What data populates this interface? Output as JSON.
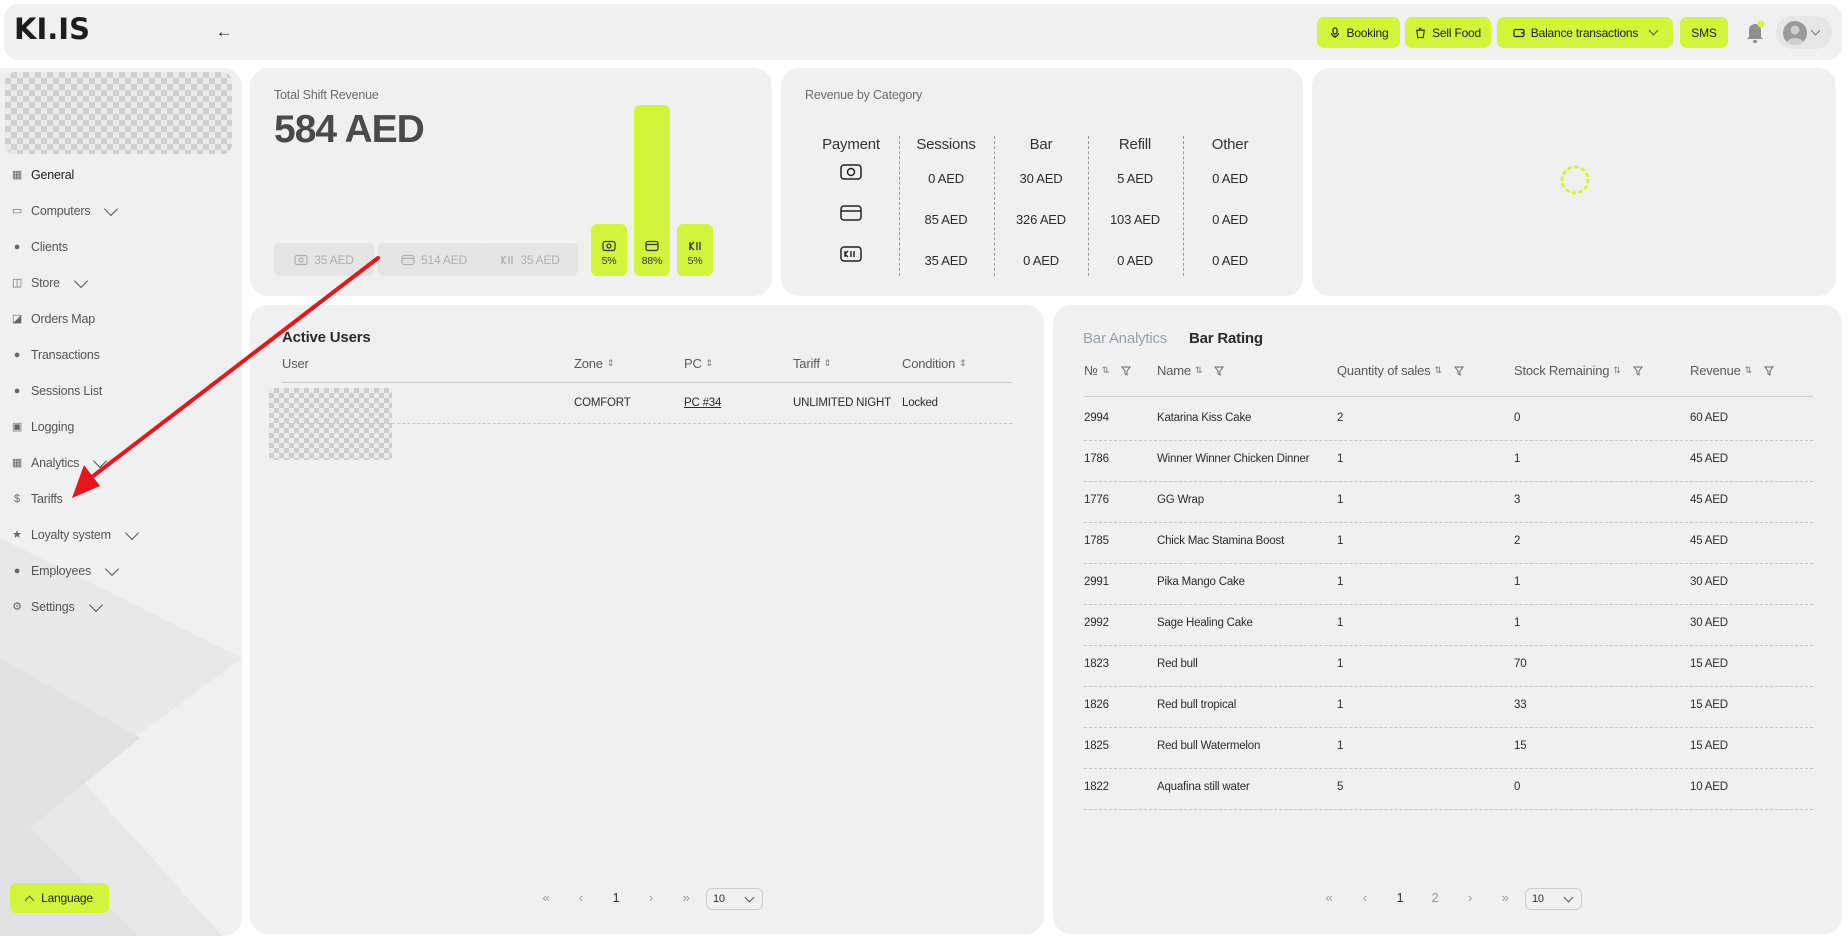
{
  "app": {
    "logo_text": "KI.IS"
  },
  "topbar": {
    "buttons": [
      {
        "label": "Booking",
        "icon": "microphone-icon"
      },
      {
        "label": "Sell Food",
        "icon": "cup-icon"
      },
      {
        "label": "Balance transactions",
        "icon": "wallet-icon"
      },
      {
        "label": "SMS"
      }
    ]
  },
  "sidebar": {
    "items": [
      {
        "label": "General",
        "icon": "grid-icon",
        "active": true
      },
      {
        "label": "Computers",
        "icon": "monitor-icon",
        "expandable": true
      },
      {
        "label": "Clients",
        "icon": "users-icon"
      },
      {
        "label": "Store",
        "icon": "store-icon",
        "expandable": true
      },
      {
        "label": "Orders Map",
        "icon": "map-icon"
      },
      {
        "label": "Transactions",
        "icon": "coin-icon"
      },
      {
        "label": "Sessions List",
        "icon": "list-icon"
      },
      {
        "label": "Logging",
        "icon": "file-icon"
      },
      {
        "label": "Analytics",
        "icon": "chart-icon",
        "expandable": true
      },
      {
        "label": "Tariffs",
        "icon": "dollar-icon"
      },
      {
        "label": "Loyalty system",
        "icon": "star-icon",
        "expandable": true
      },
      {
        "label": "Employees",
        "icon": "person-icon",
        "expandable": true
      },
      {
        "label": "Settings",
        "icon": "gear-icon",
        "expandable": true
      }
    ],
    "language_label": "Language"
  },
  "shift": {
    "title": "Total Shift Revenue",
    "total": "584 AED",
    "pills": [
      "35 AED",
      "514 AED",
      "35 AED"
    ],
    "bars": [
      {
        "pct_label": "5%",
        "share": 0.05,
        "icon": "cash-icon"
      },
      {
        "pct_label": "88%",
        "share": 0.88,
        "icon": "card-icon"
      },
      {
        "pct_label": "5%",
        "share": 0.05,
        "icon": "bonus-icon"
      }
    ]
  },
  "category": {
    "title": "Revenue by Category",
    "columns": [
      "Payment",
      "Sessions",
      "Bar",
      "Refill",
      "Other"
    ],
    "rows": [
      {
        "icon": "cash-icon",
        "values": [
          "0 AED",
          "30 AED",
          "5 AED",
          "0 AED"
        ]
      },
      {
        "icon": "card-icon",
        "values": [
          "85 AED",
          "326 AED",
          "103 AED",
          "0 AED"
        ]
      },
      {
        "icon": "bonus-icon",
        "values": [
          "35 AED",
          "0 AED",
          "0 AED",
          "0 AED"
        ]
      }
    ]
  },
  "active_users": {
    "title": "Active Users",
    "columns": [
      "User",
      "Zone",
      "PC",
      "Tariff",
      "Condition"
    ],
    "rows": [
      {
        "zone": "COMFORT",
        "pc": "PC #34",
        "tariff": "UNLIMITED NIGHT",
        "condition": "Locked"
      }
    ],
    "pagination": {
      "first": "«",
      "prev": "‹",
      "current": "1",
      "next": "›",
      "last": "»",
      "page_size": "10"
    }
  },
  "bar_panel": {
    "tabs": [
      "Bar Analytics",
      "Bar Rating"
    ],
    "active_tab": "Bar Rating",
    "columns": [
      "№",
      "Name",
      "Quantity of sales",
      "Stock Remaining",
      "Revenue"
    ],
    "rows": [
      [
        "2994",
        "Katarina Kiss Cake",
        "2",
        "0",
        "60 AED"
      ],
      [
        "1786",
        "Winner Winner Chicken Dinner",
        "1",
        "1",
        "45 AED"
      ],
      [
        "1776",
        "GG Wrap",
        "1",
        "3",
        "45 AED"
      ],
      [
        "1785",
        "Chick Mac Stamina Boost",
        "1",
        "2",
        "45 AED"
      ],
      [
        "2991",
        "Pika Mango Cake",
        "1",
        "1",
        "30 AED"
      ],
      [
        "2992",
        "Sage Healing Cake",
        "1",
        "1",
        "30 AED"
      ],
      [
        "1823",
        "Red bull",
        "1",
        "70",
        "15 AED"
      ],
      [
        "1826",
        "Red bull tropical",
        "1",
        "33",
        "15 AED"
      ],
      [
        "1825",
        "Red bull Watermelon",
        "1",
        "15",
        "15 AED"
      ],
      [
        "1822",
        "Aquafina still water",
        "5",
        "0",
        "10 AED"
      ]
    ],
    "pagination": {
      "first": "«",
      "prev": "‹",
      "pages": [
        "1",
        "2"
      ],
      "current": "1",
      "next": "›",
      "last": "»",
      "page_size": "10"
    }
  },
  "colors": {
    "accent": "#d2f53c",
    "card": "#f0f0f0",
    "annotation": "#e8151b"
  }
}
